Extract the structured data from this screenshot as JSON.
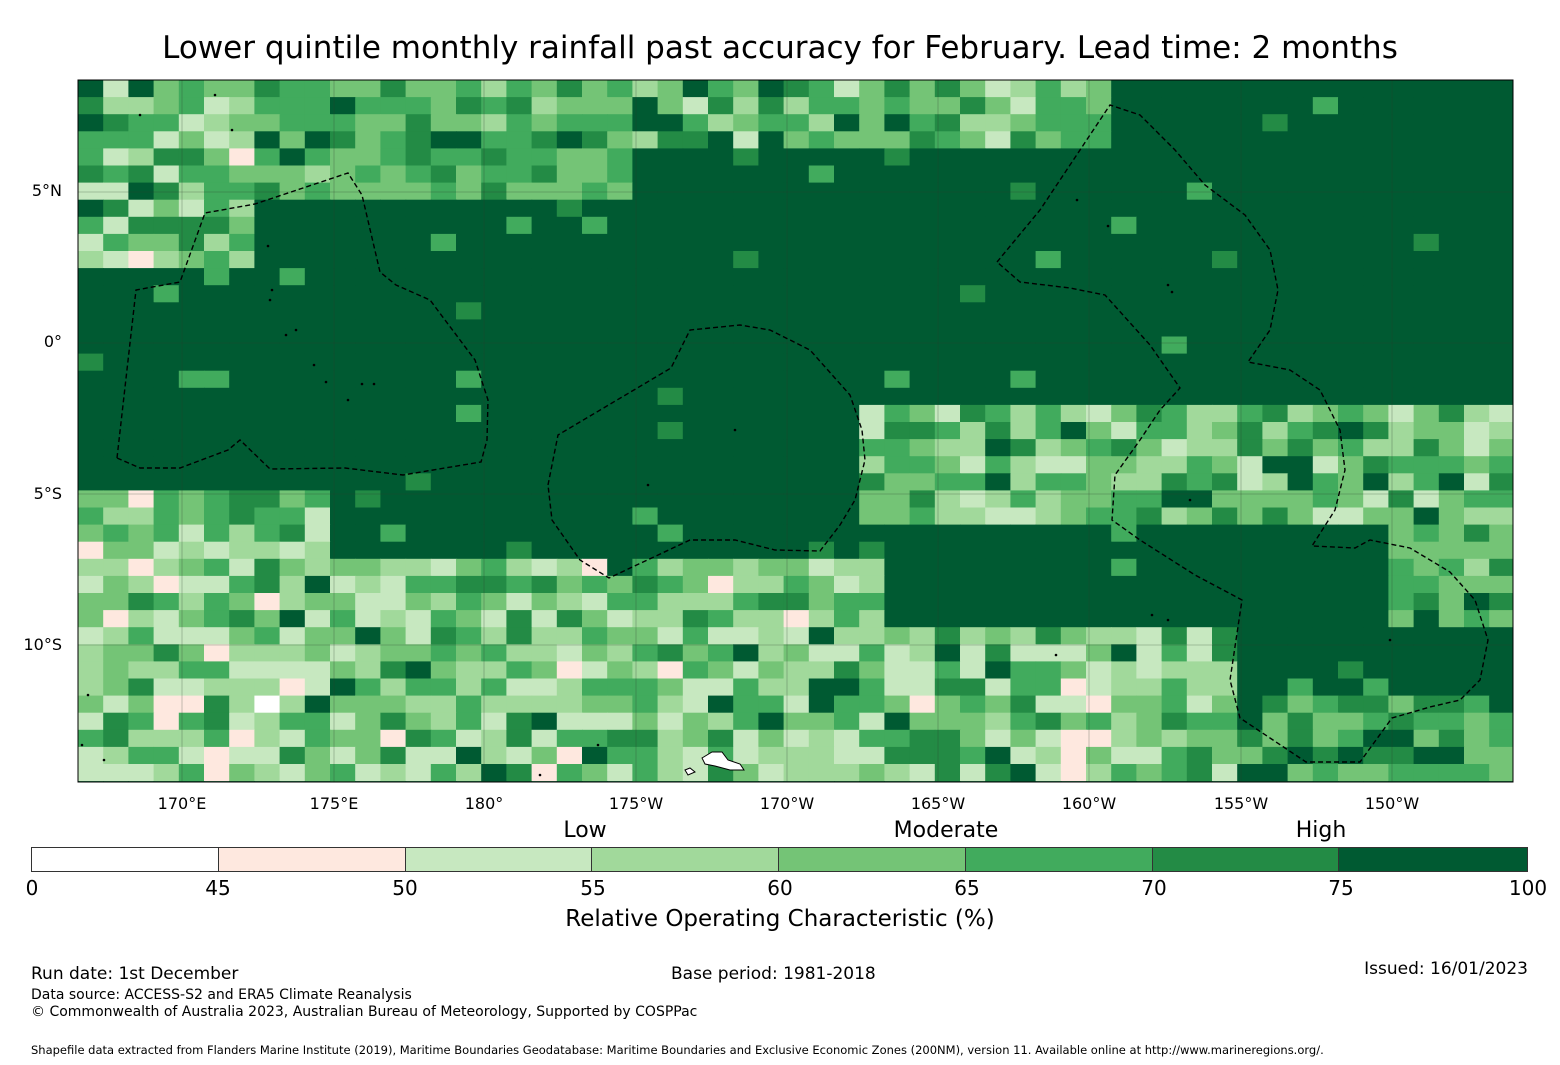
{
  "title": "Lower quintile monthly rainfall past accuracy for February. Lead time: 2 months",
  "map": {
    "lat_labels": [
      "5°N",
      "0°",
      "5°S",
      "10°S"
    ],
    "lon_labels": [
      "170°E",
      "175°E",
      "180°",
      "175°W",
      "170°W",
      "165°W",
      "160°W",
      "155°W",
      "150°W"
    ],
    "extent": {
      "lon_min": 166.6,
      "lon_max": 213.9,
      "lat_min": -14.5,
      "lat_max": 8.6
    },
    "grid_resolution_deg": 0.83
  },
  "legend": {
    "categories": [
      "Low",
      "Moderate",
      "High"
    ],
    "ticks": [
      "0",
      "45",
      "50",
      "55",
      "60",
      "65",
      "70",
      "75",
      "100"
    ],
    "colors": [
      "#ffffff",
      "#fee8df",
      "#c7e8c0",
      "#a1d99b",
      "#74c476",
      "#41ab5d",
      "#238b45",
      "#005a32"
    ],
    "title": "Relative Operating Characteristic (%)"
  },
  "footer": {
    "run_date": "Run date: 1st December",
    "base_period": "Base period: 1981-2018",
    "issued": "Issued: 16/01/2023",
    "data_source": "Data source: ACCESS-S2 and ERA5 Climate Reanalysis",
    "copyright": "© Commonwealth of Australia 2023, Australian Bureau of Meteorology, Supported by COSPPac",
    "shapefile": "Shapefile data extracted from Flanders Marine Institute (2019), Maritime Boundaries Geodatabase: Maritime Boundaries and Exclusive Economic Zones (200NM), version 11. Available online at http://www.marineregions.org/."
  }
}
